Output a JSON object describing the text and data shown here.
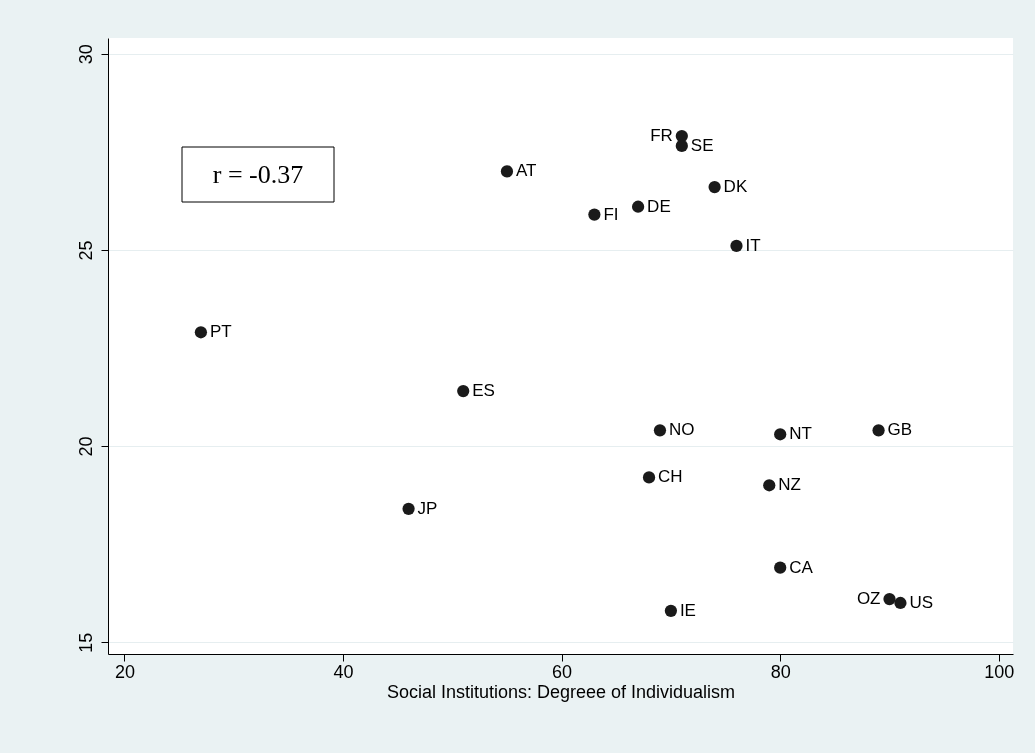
{
  "chart_data": {
    "type": "scatter",
    "xlabel": "Social Institutions: Degreee of Individualism",
    "x": [
      27,
      55,
      71,
      71,
      63,
      67,
      74,
      76,
      51,
      69,
      80,
      89,
      68,
      79,
      46,
      80,
      70,
      90,
      91
    ],
    "values": [
      22.9,
      27.0,
      27.9,
      27.65,
      25.9,
      26.1,
      26.6,
      25.1,
      21.4,
      20.4,
      20.3,
      20.4,
      19.2,
      19.0,
      18.4,
      16.9,
      15.8,
      16.1,
      16.0
    ],
    "value_labels": [
      "PT",
      "AT",
      "FR",
      "SE",
      "FI",
      "DE",
      "DK",
      "IT",
      "ES",
      "NO",
      "NT",
      "GB",
      "CH",
      "NZ",
      "JP",
      "CA",
      "IE",
      "OZ",
      "US"
    ],
    "color": "#1a1a1a",
    "marker": "circle",
    "xlim": [
      18.5,
      101.3
    ],
    "ylim": [
      14.7,
      30.4
    ],
    "xticks": [
      20,
      40,
      60,
      80,
      100
    ],
    "yticks": [
      15,
      20,
      25,
      30
    ],
    "grid": "y",
    "annotations": [
      "r = -0.37"
    ]
  }
}
